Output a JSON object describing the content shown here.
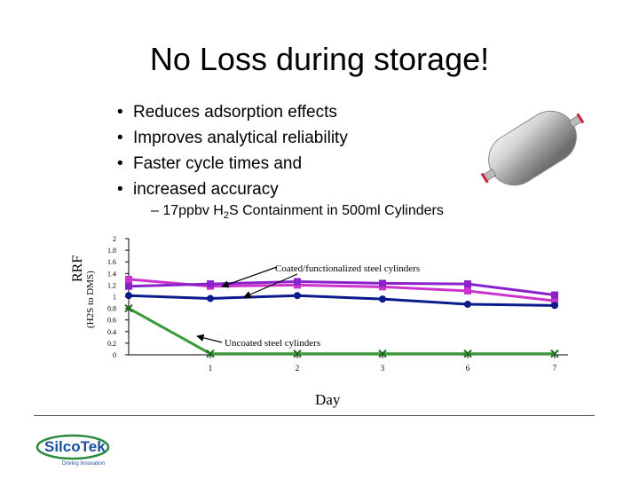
{
  "title": "No Loss during storage!",
  "bullets": [
    "Reduces adsorption effects",
    "Improves analytical reliability",
    "Faster cycle times and",
    "increased accuracy"
  ],
  "subbullet": {
    "prefix": "– 17ppbv H",
    "subscript": "2",
    "suffix": "S Containment in 500ml Cylinders"
  },
  "logo": {
    "name": "SilcoTek",
    "tagline": "Driving Innovation"
  },
  "colors": {
    "green": "#3a9a3a",
    "blue": "#0b1a8c",
    "magenta": "#cc33cc",
    "purple": "#8a22cc"
  },
  "chart_data": {
    "type": "line",
    "ylabel": "RRF",
    "ylabel_sub": "(H2S to DMS)",
    "xlabel": "Day",
    "ylim": [
      0,
      2
    ],
    "yticks": [
      "0",
      "0.2",
      "0.4",
      "0.6",
      "0.8",
      "1",
      "1.2",
      "1.4",
      "1.6",
      "1.8",
      "2"
    ],
    "categories": [
      "",
      "1",
      "2",
      "3",
      "6",
      "7"
    ],
    "series": [
      {
        "color": "#cc33cc",
        "marker": "square",
        "values": [
          1.3,
          1.18,
          1.2,
          1.17,
          1.1,
          0.93
        ]
      },
      {
        "color": "#8a22cc",
        "marker": "square",
        "values": [
          1.18,
          1.22,
          1.26,
          1.23,
          1.22,
          1.03
        ]
      },
      {
        "color": "#0b1a8c",
        "marker": "circle",
        "values": [
          1.02,
          0.97,
          1.02,
          0.96,
          0.87,
          0.85
        ]
      },
      {
        "color": "#3a9a3a",
        "marker": "x",
        "values": [
          0.8,
          0.02,
          0.02,
          0.02,
          0.02,
          0.02
        ]
      }
    ],
    "annotations": [
      {
        "text": "Coated/functionalized steel cylinders"
      },
      {
        "text": "Uncoated steel cylinders"
      }
    ]
  }
}
